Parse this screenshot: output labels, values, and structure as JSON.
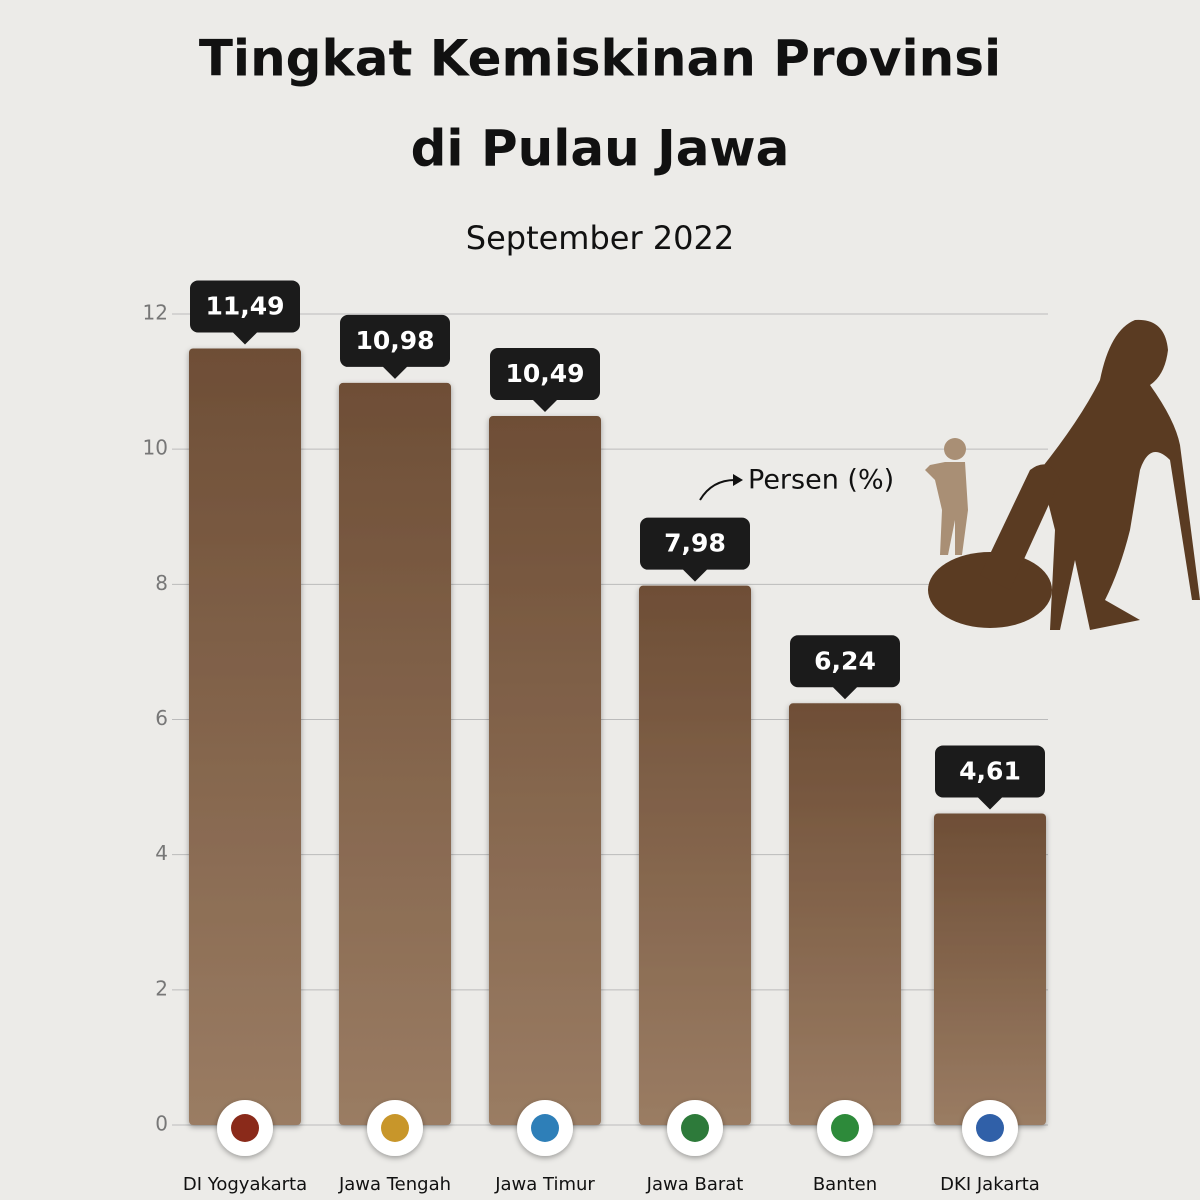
{
  "chart_data": {
    "type": "bar",
    "title": [
      "Tingkat Kemiskinan Provinsi",
      "di Pulau Jawa"
    ],
    "subtitle": "September 2022",
    "annotation": "Persen (%)",
    "categories": [
      "DI Yogyakarta",
      "Jawa Tengah",
      "Jawa Timur",
      "Jawa Barat",
      "Banten",
      "DKI Jakarta"
    ],
    "values": [
      11.49,
      10.98,
      10.49,
      7.98,
      6.24,
      4.61
    ],
    "value_labels": [
      "11,49",
      "10,98",
      "10,49",
      "7,98",
      "6,24",
      "4,61"
    ],
    "color": "#7a5c43",
    "ylim": [
      0,
      12
    ],
    "yticks": [
      0,
      2,
      4,
      6,
      8,
      10,
      12
    ],
    "grid": true
  }
}
